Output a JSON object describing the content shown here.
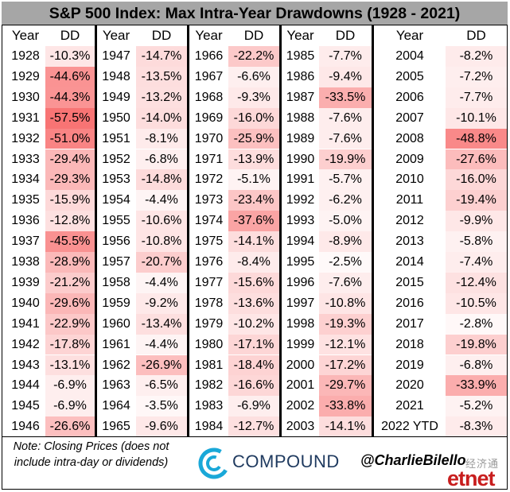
{
  "chart_data": {
    "type": "table",
    "title": "S&P 500 Index: Max Intra-Year Drawdowns (1928 - 2021)",
    "columns": [
      "Year",
      "DD"
    ],
    "groups": [
      {
        "rows": [
          [
            "1928",
            "-10.3%"
          ],
          [
            "1929",
            "-44.6%"
          ],
          [
            "1930",
            "-44.3%"
          ],
          [
            "1931",
            "-57.5%"
          ],
          [
            "1932",
            "-51.0%"
          ],
          [
            "1933",
            "-29.4%"
          ],
          [
            "1934",
            "-29.3%"
          ],
          [
            "1935",
            "-15.9%"
          ],
          [
            "1936",
            "-12.8%"
          ],
          [
            "1937",
            "-45.5%"
          ],
          [
            "1938",
            "-28.9%"
          ],
          [
            "1939",
            "-21.2%"
          ],
          [
            "1940",
            "-29.6%"
          ],
          [
            "1941",
            "-22.9%"
          ],
          [
            "1942",
            "-17.8%"
          ],
          [
            "1943",
            "-13.1%"
          ],
          [
            "1944",
            "-6.9%"
          ],
          [
            "1945",
            "-6.9%"
          ],
          [
            "1946",
            "-26.6%"
          ]
        ]
      },
      {
        "rows": [
          [
            "1947",
            "-14.7%"
          ],
          [
            "1948",
            "-13.5%"
          ],
          [
            "1949",
            "-13.2%"
          ],
          [
            "1950",
            "-14.0%"
          ],
          [
            "1951",
            "-8.1%"
          ],
          [
            "1952",
            "-6.8%"
          ],
          [
            "1953",
            "-14.8%"
          ],
          [
            "1954",
            "-4.4%"
          ],
          [
            "1955",
            "-10.6%"
          ],
          [
            "1956",
            "-10.8%"
          ],
          [
            "1957",
            "-20.7%"
          ],
          [
            "1958",
            "-4.4%"
          ],
          [
            "1959",
            "-9.2%"
          ],
          [
            "1960",
            "-13.4%"
          ],
          [
            "1961",
            "-4.4%"
          ],
          [
            "1962",
            "-26.9%"
          ],
          [
            "1963",
            "-6.5%"
          ],
          [
            "1964",
            "-3.5%"
          ],
          [
            "1965",
            "-9.6%"
          ]
        ]
      },
      {
        "rows": [
          [
            "1966",
            "-22.2%"
          ],
          [
            "1967",
            "-6.6%"
          ],
          [
            "1968",
            "-9.3%"
          ],
          [
            "1969",
            "-16.0%"
          ],
          [
            "1970",
            "-25.9%"
          ],
          [
            "1971",
            "-13.9%"
          ],
          [
            "1972",
            "-5.1%"
          ],
          [
            "1973",
            "-23.4%"
          ],
          [
            "1974",
            "-37.6%"
          ],
          [
            "1975",
            "-14.1%"
          ],
          [
            "1976",
            "-8.4%"
          ],
          [
            "1977",
            "-15.6%"
          ],
          [
            "1978",
            "-13.6%"
          ],
          [
            "1979",
            "-10.2%"
          ],
          [
            "1980",
            "-17.1%"
          ],
          [
            "1981",
            "-18.4%"
          ],
          [
            "1982",
            "-16.6%"
          ],
          [
            "1983",
            "-6.9%"
          ],
          [
            "1984",
            "-12.7%"
          ]
        ]
      },
      {
        "rows": [
          [
            "1985",
            "-7.7%"
          ],
          [
            "1986",
            "-9.4%"
          ],
          [
            "1987",
            "-33.5%"
          ],
          [
            "1988",
            "-7.6%"
          ],
          [
            "1989",
            "-7.6%"
          ],
          [
            "1990",
            "-19.9%"
          ],
          [
            "1991",
            "-5.7%"
          ],
          [
            "1992",
            "-6.2%"
          ],
          [
            "1993",
            "-5.0%"
          ],
          [
            "1994",
            "-8.9%"
          ],
          [
            "1995",
            "-2.5%"
          ],
          [
            "1996",
            "-7.6%"
          ],
          [
            "1997",
            "-10.8%"
          ],
          [
            "1998",
            "-19.3%"
          ],
          [
            "1999",
            "-12.1%"
          ],
          [
            "2000",
            "-17.2%"
          ],
          [
            "2001",
            "-29.7%"
          ],
          [
            "2002",
            "-33.8%"
          ],
          [
            "2003",
            "-14.1%"
          ]
        ]
      },
      {
        "rows": [
          [
            "2004",
            "-8.2%"
          ],
          [
            "2005",
            "-7.2%"
          ],
          [
            "2006",
            "-7.7%"
          ],
          [
            "2007",
            "-10.1%"
          ],
          [
            "2008",
            "-48.8%"
          ],
          [
            "2009",
            "-27.6%"
          ],
          [
            "2010",
            "-16.0%"
          ],
          [
            "2011",
            "-19.4%"
          ],
          [
            "2012",
            "-9.9%"
          ],
          [
            "2013",
            "-5.8%"
          ],
          [
            "2014",
            "-7.4%"
          ],
          [
            "2015",
            "-12.4%"
          ],
          [
            "2016",
            "-10.5%"
          ],
          [
            "2017",
            "-2.8%"
          ],
          [
            "2018",
            "-19.8%"
          ],
          [
            "2019",
            "-6.8%"
          ],
          [
            "2020",
            "-33.9%"
          ],
          [
            "2021",
            "-5.2%"
          ],
          [
            "2022 YTD",
            "-8.3%"
          ]
        ]
      }
    ],
    "color_scale": {
      "low": "#ffffff",
      "high": "#f87474"
    }
  },
  "footer": {
    "note": "Note: Closing Prices (does not include intra-day or dividends)",
    "logo_text": "COMPOUND",
    "handle": "@CharlieBilello",
    "watermark_cn": "经济通",
    "watermark_en": "etnet",
    "logo_color": "#1aa8d8"
  }
}
